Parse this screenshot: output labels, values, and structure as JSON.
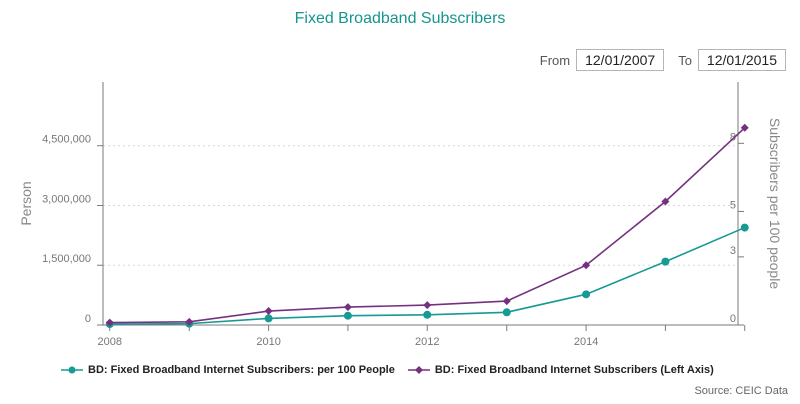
{
  "header": {
    "title": "Fixed Broadband Subscribers",
    "from_label": "From",
    "from_date": "12/01/2007",
    "to_label": "To",
    "to_date": "12/01/2015"
  },
  "source": "Source: CEIC Data",
  "colors": {
    "teal": "#169a93",
    "purple": "#75317f",
    "axis": "#7a7a7a",
    "grid": "#d8d8d8"
  },
  "chart_data": {
    "type": "line",
    "x": [
      "2008-01-01",
      "2009-01-01",
      "2010-01-01",
      "2011-01-01",
      "2012-01-01",
      "2013-01-01",
      "2014-01-01",
      "2015-01-01",
      "2016-01-01"
    ],
    "x_tick_labels": [
      "2008",
      "2010",
      "2012",
      "2014"
    ],
    "x_tick_dates": [
      "2008-01-01",
      "2010-01-01",
      "2012-01-01",
      "2014-01-01"
    ],
    "ylabel_left": "Person",
    "ylabel_right": "Subscribers per 100 people",
    "yticks_left": [
      0,
      1500000,
      3000000,
      4500000
    ],
    "yticks_left_labels": [
      "0",
      "1,500,000",
      "3,000,000",
      "4,500,000"
    ],
    "ylim_left": [
      0,
      6100000
    ],
    "yticks_right": [
      0,
      3,
      5,
      8
    ],
    "yticks_right_labels": [
      "0",
      "3",
      "5",
      "8"
    ],
    "ylim_right": [
      0,
      10.7
    ],
    "series": [
      {
        "name": "BD: Fixed Broadband Internet Subscribers: per 100 People",
        "axis": "right",
        "color": "#169a93",
        "marker": "circle",
        "values": [
          0.04,
          0.06,
          0.29,
          0.41,
          0.45,
          0.56,
          1.35,
          2.79,
          4.29
        ]
      },
      {
        "name": "BD: Fixed Broadband Internet Subscribers (Left Axis)",
        "axis": "left",
        "color": "#75317f",
        "marker": "diamond",
        "values": [
          60000,
          80000,
          350000,
          450000,
          500000,
          600000,
          1500000,
          3100000,
          4950000
        ]
      }
    ],
    "grid": "horizontal dashed",
    "legend": "bottom-left"
  }
}
